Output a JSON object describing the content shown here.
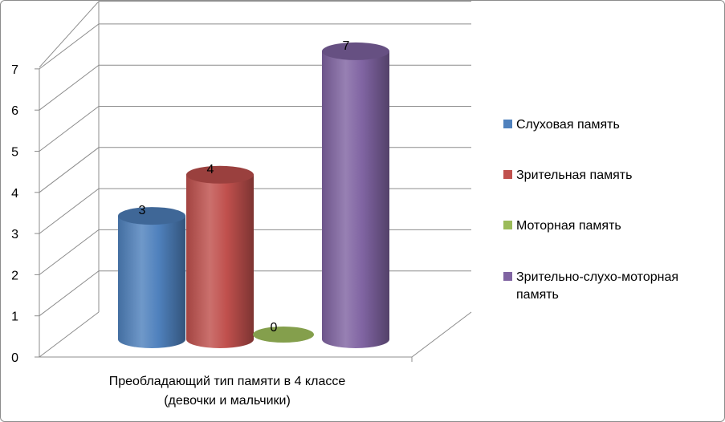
{
  "chart_data": {
    "type": "bar",
    "style": "3d-cylinder",
    "categories": [
      "Преобладающий тип памяти в 4 классе (девочки и мальчики)"
    ],
    "category_label_lines": [
      "Преобладающий тип памяти в 4 классе",
      "(девочки и мальчики)"
    ],
    "series": [
      {
        "name": "Слуховая память",
        "values": [
          3
        ],
        "color": "#4F81BD"
      },
      {
        "name": "Зрительная память",
        "values": [
          4
        ],
        "color": "#C0504D"
      },
      {
        "name": "Моторная память",
        "values": [
          0
        ],
        "color": "#9BBB59"
      },
      {
        "name": "Зрительно-слухо-моторная память",
        "legend_lines": [
          "Зрительно-слухо-моторная",
          "память"
        ],
        "values": [
          7
        ],
        "color": "#8064A2"
      }
    ],
    "ylim": [
      0,
      7
    ],
    "yticks": [
      "0",
      "1",
      "2",
      "3",
      "4",
      "5",
      "6",
      "7"
    ],
    "grid": true,
    "legend": "right",
    "data_labels": true
  }
}
